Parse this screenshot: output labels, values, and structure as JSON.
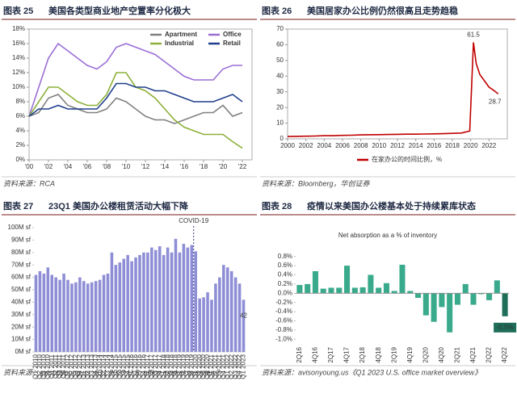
{
  "chart_data": [
    {
      "type": "line",
      "figure": "图表 25",
      "title": "美国各类型商业地产空置率分化极大",
      "source": "资料来源：RCA",
      "x": [
        2000,
        2001,
        2002,
        2003,
        2004,
        2005,
        2006,
        2007,
        2008,
        2009,
        2010,
        2011,
        2012,
        2013,
        2014,
        2015,
        2016,
        2017,
        2018,
        2019,
        2020,
        2021,
        2022
      ],
      "series": [
        {
          "name": "Apartment",
          "color": "#808080",
          "values": [
            6,
            6.5,
            8.5,
            9,
            7.5,
            7,
            6.5,
            6.5,
            7,
            8.5,
            8,
            7,
            6,
            5.5,
            5.5,
            5,
            5.5,
            6,
            6.5,
            6.5,
            7.5,
            6,
            6.5
          ]
        },
        {
          "name": "Office",
          "color": "#9b6fd6",
          "values": [
            6,
            10,
            14,
            16,
            15,
            14,
            13,
            12.5,
            13.5,
            15.5,
            16,
            15.5,
            15,
            14.5,
            13.5,
            12.5,
            11.5,
            11,
            11,
            11,
            12.5,
            13,
            13
          ]
        },
        {
          "name": "Industrial",
          "color": "#8db03a",
          "values": [
            6,
            8,
            10,
            10,
            9,
            8,
            7.5,
            7.5,
            9,
            12,
            12,
            10,
            9.5,
            8.5,
            7,
            5.5,
            4.5,
            4,
            3.5,
            3.5,
            3.5,
            2.5,
            1.6
          ]
        },
        {
          "name": "Retail",
          "color": "#1f3f8c",
          "values": [
            6,
            7,
            7,
            7.5,
            7,
            7,
            7,
            7,
            8.5,
            10.5,
            10.5,
            10,
            10,
            9.5,
            9.5,
            9,
            8.5,
            8,
            8,
            8,
            8.5,
            9,
            8
          ]
        }
      ],
      "xlim": [
        2000,
        2023
      ],
      "xticks": [
        {
          "value": 2000,
          "label": "'00"
        },
        {
          "value": 2002,
          "label": "'02"
        },
        {
          "value": 2004,
          "label": "'04"
        },
        {
          "value": 2006,
          "label": "'06"
        },
        {
          "value": 2008,
          "label": "'08"
        },
        {
          "value": 2010,
          "label": "'10"
        },
        {
          "value": 2012,
          "label": "'12"
        },
        {
          "value": 2014,
          "label": "'14"
        },
        {
          "value": 2016,
          "label": "'16"
        },
        {
          "value": 2018,
          "label": "'18"
        },
        {
          "value": 2020,
          "label": "'20"
        },
        {
          "value": 2022,
          "label": "'22"
        }
      ],
      "ylim": [
        0,
        18
      ],
      "yticks": [
        {
          "value": 0,
          "label": "0%"
        },
        {
          "value": 2,
          "label": "2%"
        },
        {
          "value": 4,
          "label": "4%"
        },
        {
          "value": 6,
          "label": "6%"
        },
        {
          "value": 8,
          "label": "8%"
        },
        {
          "value": 10,
          "label": "10%"
        },
        {
          "value": 12,
          "label": "12%"
        },
        {
          "value": 14,
          "label": "14%"
        },
        {
          "value": 16,
          "label": "16%"
        },
        {
          "value": 18,
          "label": "18%"
        }
      ],
      "legend": "top",
      "grid": false
    },
    {
      "type": "line",
      "figure": "图表 26",
      "title": "美国居家办公比例仍然很高且走势趋稳",
      "source": "资料来源：Bloomberg，华创证券",
      "x": [
        2000,
        2001,
        2002,
        2003,
        2004,
        2005,
        2006,
        2007,
        2008,
        2009,
        2010,
        2011,
        2012,
        2013,
        2014,
        2015,
        2016,
        2017,
        2018,
        2019,
        2019.9,
        2020.3,
        2020.6,
        2021,
        2021.5,
        2022,
        2022.5,
        2023
      ],
      "series": [
        {
          "name": "在家办公的时间比例，%",
          "color": "#c00000",
          "values": [
            1.5,
            1.6,
            1.7,
            1.8,
            2,
            2,
            2.2,
            2.3,
            2.5,
            2.6,
            2.7,
            2.8,
            2.9,
            3,
            3,
            3.1,
            3.2,
            3.3,
            3.5,
            3.7,
            5,
            61.5,
            48,
            41,
            37,
            33,
            31,
            28.7
          ]
        }
      ],
      "xlim": [
        2000,
        2024
      ],
      "xticks": [
        2000,
        2002,
        2004,
        2006,
        2008,
        2010,
        2012,
        2014,
        2016,
        2018,
        2020,
        2022
      ],
      "ylim": [
        0,
        70
      ],
      "yticks": [
        0,
        10,
        20,
        30,
        40,
        50,
        60,
        70
      ],
      "legend": "bottom",
      "grid": false
    },
    {
      "type": "bar",
      "figure": "图表 27",
      "title": "23Q1 美国办公楼租赁活动大幅下降",
      "source": "资料来源：avisonyoung.us《Q1 2023 U.S. office market overview》",
      "categories": [
        "Q1 2010",
        "Q2 2010",
        "Q3 2010",
        "Q4 2010",
        "Q1 2011",
        "Q2 2011",
        "Q3 2011",
        "Q4 2011",
        "Q1 2012",
        "Q2 2012",
        "Q3 2012",
        "Q4 2012",
        "Q1 2013",
        "Q2 2013",
        "Q3 2013",
        "Q4 2013",
        "Q1 2014",
        "Q2 2014",
        "Q3 2014",
        "Q4 2014",
        "Q1 2015",
        "Q2 2015",
        "Q3 2015",
        "Q4 2015",
        "Q1 2016",
        "Q2 2016",
        "Q3 2016",
        "Q4 2016",
        "Q1 2017",
        "Q2 2017",
        "Q3 2017",
        "Q4 2017",
        "Q1 2018",
        "Q2 2018",
        "Q3 2018",
        "Q4 2018",
        "Q1 2019",
        "Q2 2019",
        "Q3 2019",
        "Q4 2019",
        "Q1 2020",
        "Q2 2020",
        "Q3 2020",
        "Q4 2020",
        "Q1 2021",
        "Q2 2021",
        "Q3 2021",
        "Q4 2021",
        "Q1 2022",
        "Q2 2022",
        "Q3 2022",
        "Q4 2022",
        "Q1 2023"
      ],
      "values": [
        62,
        65,
        63,
        68,
        62,
        60,
        58,
        63,
        58,
        55,
        56,
        60,
        57,
        55,
        56,
        57,
        58,
        62,
        63,
        80,
        70,
        72,
        75,
        78,
        73,
        76,
        78,
        80,
        80,
        84,
        82,
        85,
        78,
        84,
        80,
        91,
        80,
        87,
        84,
        86,
        81,
        43,
        44,
        48,
        42,
        55,
        60,
        70,
        68,
        65,
        60,
        55,
        42
      ],
      "color": "#8e8ed6",
      "ylim": [
        0,
        100
      ],
      "yticks": [
        {
          "value": 0,
          "label": "0M sf"
        },
        {
          "value": 10,
          "label": "10M sf"
        },
        {
          "value": 20,
          "label": "20M sf"
        },
        {
          "value": 30,
          "label": "30M sf"
        },
        {
          "value": 40,
          "label": "40M sf"
        },
        {
          "value": 50,
          "label": "50M sf"
        },
        {
          "value": 60,
          "label": "60M sf"
        },
        {
          "value": 70,
          "label": "70M sf"
        },
        {
          "value": 80,
          "label": "80M sf"
        },
        {
          "value": 90,
          "label": "90M sf"
        },
        {
          "value": 100,
          "label": "100M sf"
        }
      ],
      "annotation": {
        "text": "COVID-19",
        "at": "Q1 2020"
      },
      "grid": false
    },
    {
      "type": "bar",
      "figure": "图表 28",
      "title": "疫情以来美国办公楼基本处于持续累库状态",
      "source": "资料来源：avisonyoung.us《Q1 2023 U.S. office market overview》",
      "plot_title": "Net absorption as a % of inventory",
      "categories": [
        "2Q16",
        null,
        "4Q16",
        null,
        "2Q17",
        null,
        "4Q17",
        null,
        "2Q18",
        null,
        "4Q18",
        null,
        "2Q19",
        null,
        "4Q19",
        null,
        "2Q20",
        null,
        "4Q20",
        null,
        "2Q21",
        null,
        "4Q21",
        null,
        "2Q22",
        null,
        "4Q22"
      ],
      "values": [
        0.18,
        0.2,
        0.48,
        0.1,
        0.12,
        0.12,
        0.6,
        0.12,
        0.13,
        0.4,
        0.12,
        0.22,
        0.05,
        0.62,
        0.05,
        -0.1,
        -0.48,
        -0.62,
        -0.3,
        -0.85,
        -0.25,
        0.2,
        -0.25,
        -0.02,
        -0.15,
        0.28,
        -0.5
      ],
      "value_labels": [
        null,
        null,
        null,
        null,
        null,
        null,
        null,
        null,
        null,
        null,
        null,
        null,
        null,
        null,
        null,
        null,
        null,
        null,
        null,
        null,
        null,
        null,
        null,
        null,
        null,
        null,
        "-0.5%"
      ],
      "colors": [
        "#3aaa8c",
        "#3aaa8c",
        "#3aaa8c",
        "#3aaa8c",
        "#3aaa8c",
        "#3aaa8c",
        "#3aaa8c",
        "#3aaa8c",
        "#3aaa8c",
        "#3aaa8c",
        "#3aaa8c",
        "#3aaa8c",
        "#3aaa8c",
        "#3aaa8c",
        "#3aaa8c",
        "#3aaa8c",
        "#3aaa8c",
        "#3aaa8c",
        "#3aaa8c",
        "#3aaa8c",
        "#3aaa8c",
        "#3aaa8c",
        "#3aaa8c",
        "#3aaa8c",
        "#3aaa8c",
        "#3aaa8c",
        "#1e6e5a"
      ],
      "ylim": [
        -1.1,
        0.9
      ],
      "yticks": [
        {
          "value": -1,
          "label": "-1.0%"
        },
        {
          "value": -0.8,
          "label": "-0.8%"
        },
        {
          "value": -0.6,
          "label": "-0.6%"
        },
        {
          "value": -0.4,
          "label": "-0.4%"
        },
        {
          "value": -0.2,
          "label": "-0.2%"
        },
        {
          "value": 0,
          "label": "0.0%"
        },
        {
          "value": 0.2,
          "label": "0.2%"
        },
        {
          "value": 0.4,
          "label": "0.4%"
        },
        {
          "value": 0.6,
          "label": "0.6%"
        },
        {
          "value": 0.8,
          "label": "0.8%"
        }
      ],
      "grid": false
    }
  ]
}
